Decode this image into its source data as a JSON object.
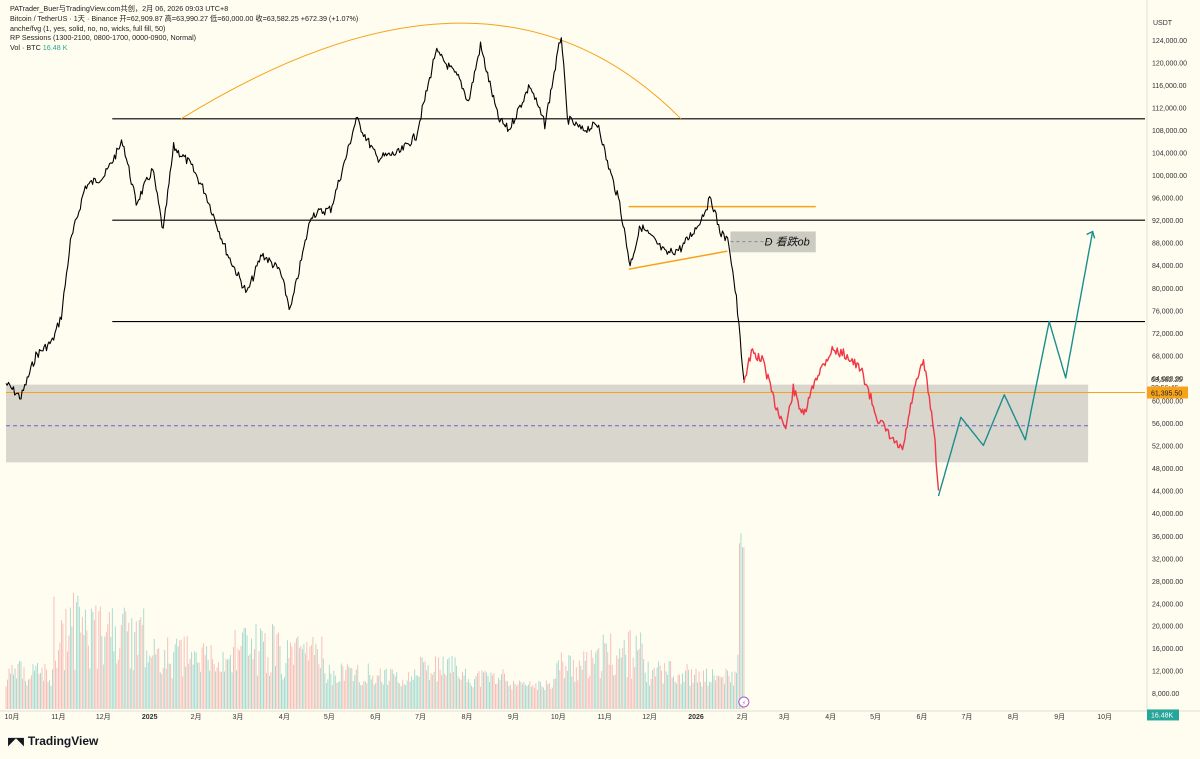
{
  "legend": {
    "header": "PATrader_Buer与TradingView.com共创，2月 06, 2026 09:03 UTC+8",
    "symbol": "Bitcoin / TetherUS · 1天 · Binance",
    "ohlc": "开=62,909.87 高=63,990.27 低=60,000.00 收=63,582.25 +672.39 (+1.07%)",
    "indicator1": "anche/fvg (1, yes, solid, no, no, wicks, full fill, 50)",
    "indicator2": "RP Sessions (1300-2100, 0800-1700, 0000-0900, Normal)",
    "vol_label": "Vol · BTC",
    "vol_value": "16.48 K"
  },
  "currency": "USDT",
  "brand": "TradingView",
  "colors": {
    "background": "#fffdf0",
    "up": "#26a69a",
    "down": "#ef5350",
    "candle": "#000000",
    "red_path": "#f23645",
    "projection": "#1a8e8e",
    "orange": "#f7a21b",
    "box_fill": "#c7c5bd"
  },
  "chart_data": {
    "type": "line",
    "title": "Bitcoin / TetherUS · 1天 · Binance",
    "xlabel": "",
    "ylabel": "",
    "price_axis": {
      "ylim": [
        40000,
        128000
      ],
      "tick_labels": [
        "124,000.00",
        "120,000.00",
        "116,000.00",
        "112,000.00",
        "108,000.00",
        "104,000.00",
        "100,000.00",
        "96,000.00",
        "92,000.00",
        "88,000.00",
        "84,000.00",
        "80,000.00",
        "76,000.00",
        "72,000.00",
        "68,000.00",
        "64,000.00",
        "60,000.00",
        "56,000.00",
        "52,000.00",
        "48,000.00",
        "44,000.00",
        "40,000.00"
      ],
      "current_price_label": "63,582.25",
      "countdown_label": "22:56:46",
      "marked_level_label": "61,395.50",
      "marked_level": 61395.5
    },
    "volume_axis": {
      "ylim": [
        8000,
        36000
      ],
      "tick_labels": [
        "36,000.00",
        "32,000.00",
        "28,000.00",
        "24,000.00",
        "20,000.00",
        "16,000.00",
        "12,000.00",
        "8,000.00"
      ],
      "current_volume_label": "16.48K"
    },
    "x_tick_labels": [
      "10月",
      "11月",
      "12月",
      "2025",
      "2月",
      "3月",
      "4月",
      "5月",
      "6月",
      "7月",
      "8月",
      "9月",
      "10月",
      "11月",
      "12月",
      "2026",
      "2月",
      "3月",
      "4月",
      "5月",
      "6月",
      "7月",
      "8月",
      "9月",
      "10月"
    ],
    "x_range": [
      "2024-09-30",
      "2026-10-31"
    ],
    "horizontal_levels": [
      110000,
      92000,
      74000
    ],
    "rectangle_zone": {
      "from": "2024-09-30",
      "to": "2026-09-23",
      "top": 62800,
      "bottom": 49000,
      "midline": 55500
    },
    "annotation_zone": {
      "label": "D 看跌ob",
      "from": "2026-01-27",
      "to": "2026-03-25",
      "top": 90000,
      "bottom": 86300,
      "midline": 88200
    },
    "arc": {
      "from": "2025-01-25",
      "peak": "2025-08-20",
      "to": "2025-12-25",
      "base": 110000,
      "top": 127000
    },
    "triangle_top": {
      "from": "2025-11-20",
      "to": "2026-03-25",
      "value": 94400
    },
    "triangle_bottom": {
      "from": "2025-11-20",
      "to": "2026-01-25",
      "start": 83300,
      "end": 86500
    },
    "series": [
      {
        "values_by_date": [
          [
            "2024-09-30",
            63000
          ],
          [
            "2024-10-10",
            60500
          ],
          [
            "2024-10-20",
            68000
          ],
          [
            "2024-10-31",
            70500
          ],
          [
            "2024-11-06",
            75000
          ],
          [
            "2024-11-12",
            88000
          ],
          [
            "2024-11-22",
            98000
          ],
          [
            "2024-12-05",
            100000
          ],
          [
            "2024-12-17",
            106000
          ],
          [
            "2024-12-26",
            95000
          ],
          [
            "2025-01-06",
            101000
          ],
          [
            "2025-01-13",
            90000
          ],
          [
            "2025-01-20",
            105000
          ],
          [
            "2025-01-31",
            102000
          ],
          [
            "2025-02-10",
            97000
          ],
          [
            "2025-02-25",
            86000
          ],
          [
            "2025-03-10",
            79000
          ],
          [
            "2025-03-20",
            86000
          ],
          [
            "2025-04-01",
            83000
          ],
          [
            "2025-04-08",
            76000
          ],
          [
            "2025-04-22",
            93000
          ],
          [
            "2025-05-05",
            94000
          ],
          [
            "2025-05-15",
            103000
          ],
          [
            "2025-05-22",
            110000
          ],
          [
            "2025-06-05",
            103000
          ],
          [
            "2025-06-20",
            104000
          ],
          [
            "2025-07-01",
            107000
          ],
          [
            "2025-07-10",
            117000
          ],
          [
            "2025-07-14",
            122000
          ],
          [
            "2025-07-30",
            117000
          ],
          [
            "2025-08-05",
            113000
          ],
          [
            "2025-08-13",
            123000
          ],
          [
            "2025-08-25",
            110000
          ],
          [
            "2025-09-01",
            108000
          ],
          [
            "2025-09-15",
            116000
          ],
          [
            "2025-09-25",
            109000
          ],
          [
            "2025-10-06",
            125000
          ],
          [
            "2025-10-10",
            110000
          ],
          [
            "2025-10-20",
            108000
          ],
          [
            "2025-10-31",
            109000
          ],
          [
            "2025-11-05",
            103000
          ],
          [
            "2025-11-14",
            95000
          ],
          [
            "2025-11-21",
            84000
          ],
          [
            "2025-11-28",
            91000
          ],
          [
            "2025-12-05",
            89000
          ],
          [
            "2025-12-15",
            86000
          ],
          [
            "2025-12-25",
            87000
          ],
          [
            "2026-01-05",
            91000
          ],
          [
            "2026-01-14",
            96000
          ],
          [
            "2026-01-20",
            90000
          ],
          [
            "2026-01-26",
            88000
          ],
          [
            "2026-01-31",
            78000
          ],
          [
            "2026-02-05",
            63582
          ]
        ]
      },
      {
        "name": "",
        "values_by_date": [
          [
            "2026-02-05",
            63500
          ],
          [
            "2026-02-10",
            68500
          ],
          [
            "2026-02-18",
            67000
          ],
          [
            "2026-02-25",
            60000
          ],
          [
            "2026-03-05",
            55000
          ],
          [
            "2026-03-10",
            62000
          ],
          [
            "2026-03-17",
            57000
          ],
          [
            "2026-03-25",
            64000
          ],
          [
            "2026-04-05",
            69000
          ],
          [
            "2026-04-15",
            68000
          ],
          [
            "2026-04-25",
            65000
          ],
          [
            "2026-05-05",
            57000
          ],
          [
            "2026-05-15",
            53000
          ],
          [
            "2026-05-22",
            51000
          ],
          [
            "2026-05-29",
            61000
          ],
          [
            "2026-06-05",
            67000
          ],
          [
            "2026-06-12",
            55000
          ],
          [
            "2026-06-15",
            44000
          ]
        ]
      },
      {
        "name": "",
        "values_by_date": [
          [
            "2026-06-15",
            43000
          ],
          [
            "2026-06-30",
            57000
          ],
          [
            "2026-07-15",
            52000
          ],
          [
            "2026-07-29",
            61000
          ],
          [
            "2026-08-12",
            53000
          ],
          [
            "2026-08-28",
            74000
          ],
          [
            "2026-09-08",
            64000
          ],
          [
            "2026-09-26",
            90000
          ]
        ]
      }
    ],
    "volume": {
      "note": "daily volume bars, BTC",
      "values_by_month": [
        [
          "2024-10",
          13000
        ],
        [
          "2024-11",
          24000
        ],
        [
          "2024-12",
          22000
        ],
        [
          "2025-01",
          17000
        ],
        [
          "2025-02",
          16000
        ],
        [
          "2025-03",
          19000
        ],
        [
          "2025-04",
          17000
        ],
        [
          "2025-05",
          13000
        ],
        [
          "2025-06",
          12000
        ],
        [
          "2025-07",
          14000
        ],
        [
          "2025-08",
          12000
        ],
        [
          "2025-09",
          10000
        ],
        [
          "2025-10",
          15000
        ],
        [
          "2025-11",
          18000
        ],
        [
          "2025-12",
          13000
        ],
        [
          "2026-01",
          12000
        ],
        [
          "2026-02",
          34000
        ]
      ]
    },
    "grid": false,
    "legend_placement": "top-left"
  }
}
